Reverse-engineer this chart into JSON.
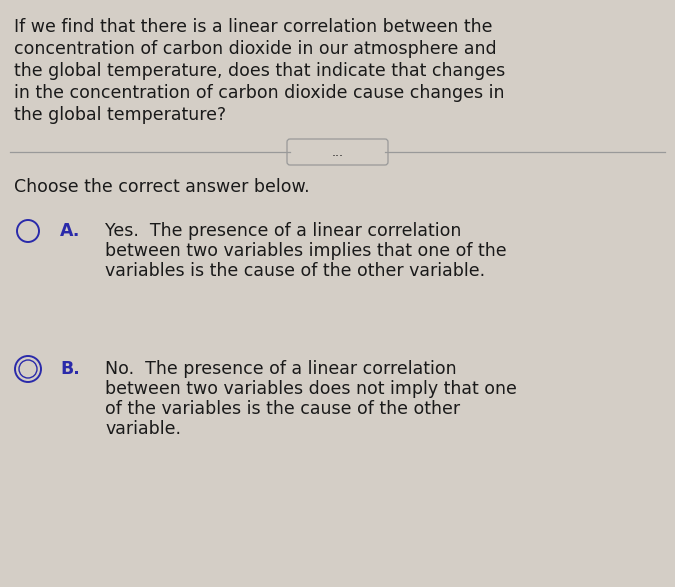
{
  "background_color": "#d4cec6",
  "question_text_lines": [
    "If we find that there is a linear correlation between the",
    "concentration of carbon dioxide in our atmosphere and",
    "the global temperature, does that indicate that changes",
    "in the concentration of carbon dioxide cause changes in",
    "the global temperature?"
  ],
  "divider_label": "...",
  "choose_text": "Choose the correct answer below.",
  "option_a_letter": "A.",
  "option_a_text_lines": [
    "Yes.  The presence of a linear correlation",
    "between two variables implies that one of the",
    "variables is the cause of the other variable."
  ],
  "option_b_letter": "B.",
  "option_b_text_lines": [
    "No.  The presence of a linear correlation",
    "between two variables does not imply that one",
    "of the variables is the cause of the other",
    "variable."
  ],
  "text_color": "#1a1a1a",
  "radio_color": "#2a2aaa",
  "font_size_question": 12.5,
  "font_size_body": 12.5,
  "font_size_letter": 12.5
}
